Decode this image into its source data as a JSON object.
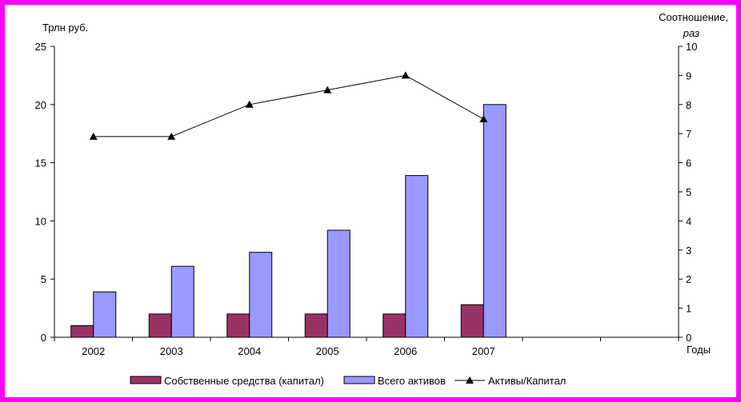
{
  "chart_data": {
    "type": "bar",
    "categories": [
      "2002",
      "2003",
      "2004",
      "2005",
      "2006",
      "2007",
      "",
      ""
    ],
    "series": [
      {
        "name": "Собственные средства (капитал)",
        "type": "bar",
        "axis": "left",
        "color": "#993366",
        "values": [
          1.0,
          2.0,
          2.0,
          2.0,
          2.0,
          2.8,
          null,
          null
        ]
      },
      {
        "name": "Всего активов",
        "type": "bar",
        "axis": "left",
        "color": "#9999ff",
        "values": [
          3.9,
          6.1,
          7.3,
          9.2,
          13.9,
          20.0,
          null,
          null
        ]
      },
      {
        "name": "Активы/Капитал",
        "type": "line",
        "axis": "right",
        "color": "#000000",
        "marker": "triangle",
        "values": [
          6.9,
          6.9,
          8.0,
          8.5,
          9.0,
          7.5,
          null,
          null
        ]
      }
    ],
    "y_left": {
      "label": "Трлн руб.",
      "lim": [
        0,
        25
      ],
      "ticks": [
        "0",
        "5",
        "10",
        "15",
        "20",
        "25"
      ]
    },
    "y_right": {
      "label_line1": "Соотношение,",
      "label_line2": "раз",
      "lim": [
        0,
        10
      ],
      "ticks": [
        "0",
        "1",
        "2",
        "3",
        "4",
        "5",
        "6",
        "7",
        "8",
        "9",
        "10"
      ]
    },
    "xlabel": "Годы",
    "legend_position": "bottom",
    "grid": false
  }
}
